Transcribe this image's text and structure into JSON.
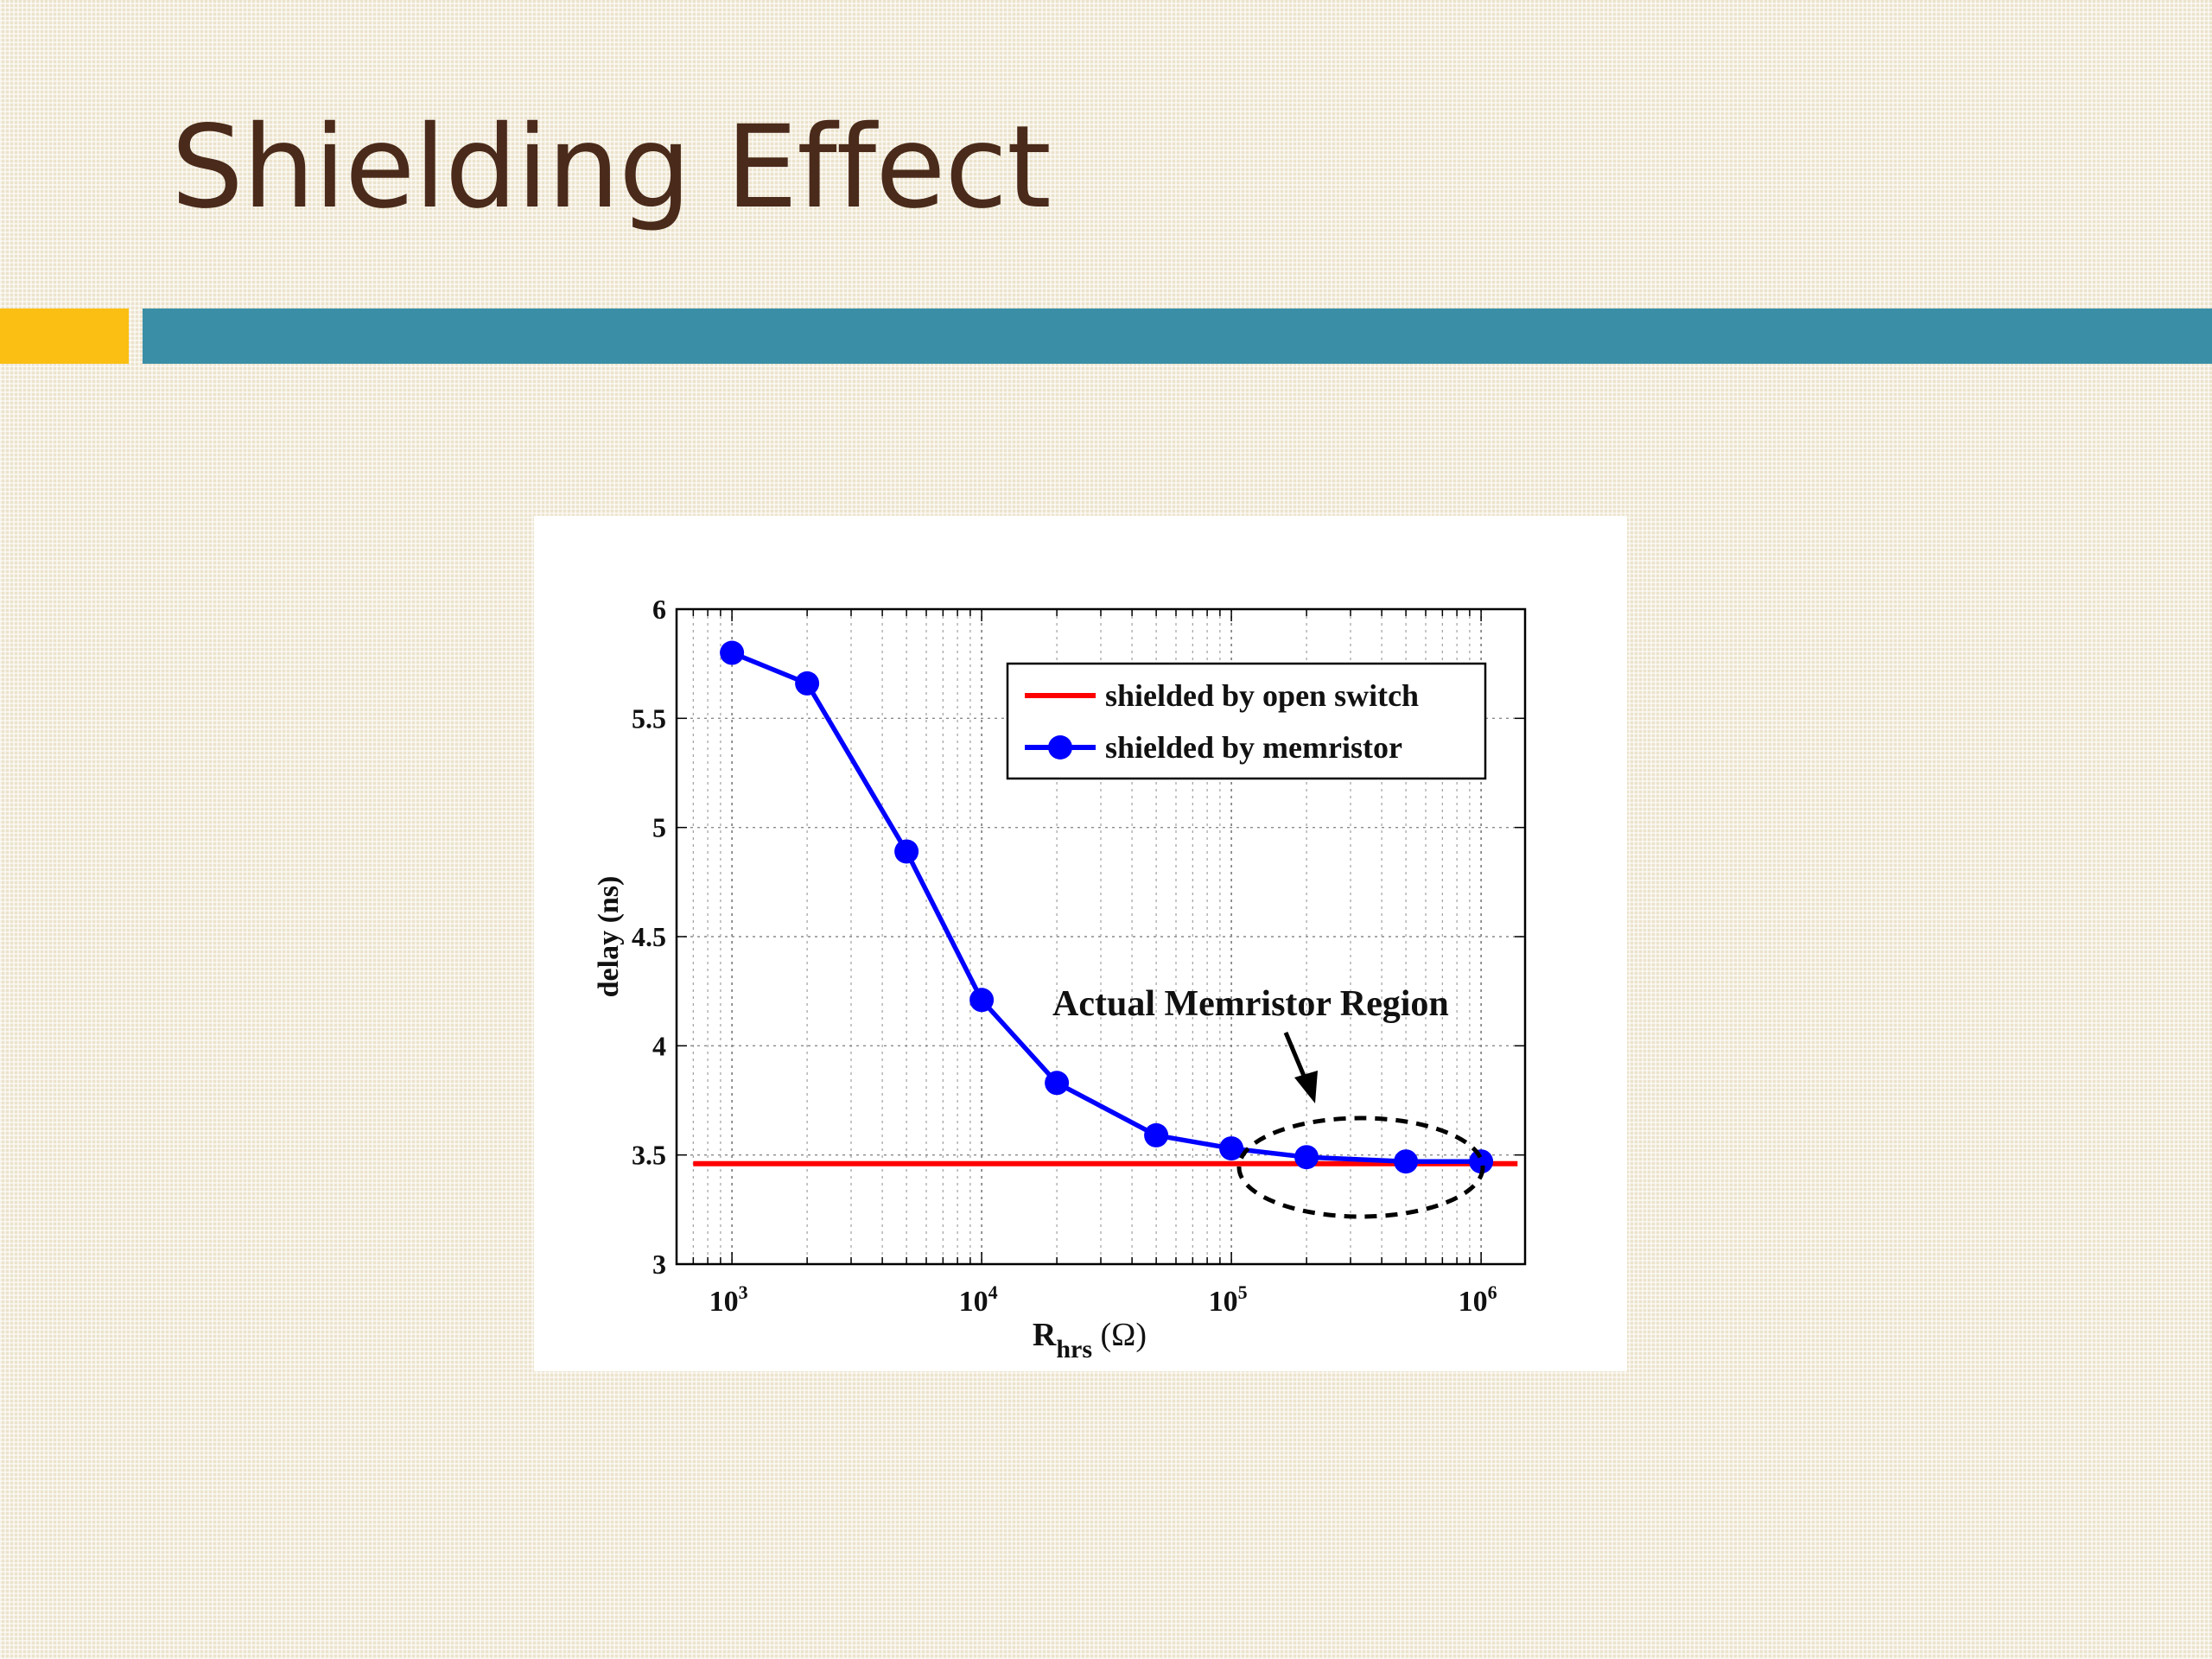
{
  "slide": {
    "title": "Shielding Effect"
  },
  "colors": {
    "title": "#4a2a1a",
    "accent_orange": "#fbbf13",
    "accent_teal": "#3a8fa7",
    "series_open_switch": "#ff0000",
    "series_memristor": "#0000ff"
  },
  "chart_data": {
    "type": "line",
    "title": "",
    "xlabel_main": "R",
    "xlabel_sub": "hrs",
    "xlabel_unit": "(Ω)",
    "ylabel": "delay (ns)",
    "x_scale": "log",
    "xlim": [
      600,
      1500000
    ],
    "ylim": [
      3,
      6
    ],
    "grid": true,
    "legend_position": "top-right",
    "x_tick_labels": [
      {
        "base": "10",
        "exp": "3",
        "value": 1000
      },
      {
        "base": "10",
        "exp": "4",
        "value": 10000
      },
      {
        "base": "10",
        "exp": "5",
        "value": 100000
      },
      {
        "base": "10",
        "exp": "6",
        "value": 1000000
      }
    ],
    "y_ticks": [
      3,
      3.5,
      4,
      4.5,
      5,
      5.5,
      6
    ],
    "y_tick_labels": [
      "3",
      "3.5",
      "4",
      "4.5",
      "5",
      "5.5",
      "6"
    ],
    "series": [
      {
        "name": "shielded by open switch",
        "color": "#ff0000",
        "marker": "none",
        "x": [
          700,
          1400000
        ],
        "y": [
          3.46,
          3.46
        ]
      },
      {
        "name": "shielded by memristor",
        "color": "#0000ff",
        "marker": "circle",
        "x": [
          1000,
          2000,
          5000,
          10000,
          20000,
          50000,
          100000,
          200000,
          500000,
          1000000
        ],
        "y": [
          5.8,
          5.66,
          4.89,
          4.21,
          3.83,
          3.59,
          3.53,
          3.49,
          3.47,
          3.47
        ]
      }
    ],
    "annotation": {
      "text": "Actual Memristor Region",
      "target": "dashed ellipse around x = 1e5 to 1e6"
    }
  }
}
